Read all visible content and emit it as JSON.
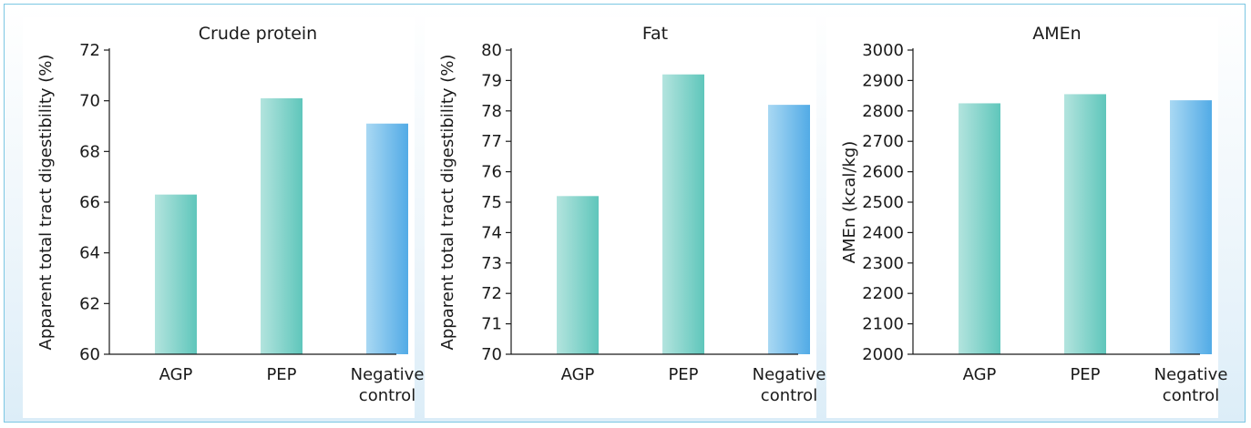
{
  "chart_data": [
    {
      "type": "bar",
      "title": "Crude protein",
      "ylabel": "Apparent total tract digestibility (%)",
      "categories": [
        [
          "AGP"
        ],
        [
          "PEP"
        ],
        [
          "Negative",
          "control"
        ]
      ],
      "values": [
        66.3,
        70.1,
        69.1
      ],
      "ylim": [
        60,
        72
      ],
      "yticks": [
        60,
        62,
        64,
        66,
        68,
        70,
        72
      ],
      "grid": false
    },
    {
      "type": "bar",
      "title": "Fat",
      "ylabel": "Apparent total tract digestibility (%)",
      "categories": [
        [
          "AGP"
        ],
        [
          "PEP"
        ],
        [
          "Negative",
          "control"
        ]
      ],
      "values": [
        75.2,
        79.2,
        78.2
      ],
      "ylim": [
        70,
        80
      ],
      "yticks": [
        70,
        71,
        72,
        73,
        74,
        75,
        76,
        77,
        78,
        79,
        80
      ],
      "grid": false
    },
    {
      "type": "bar",
      "title": "AMEn",
      "ylabel": "AMEn (kcal/kg)",
      "categories": [
        [
          "AGP"
        ],
        [
          "PEP"
        ],
        [
          "Negative",
          "control"
        ]
      ],
      "values": [
        2825,
        2855,
        2835
      ],
      "ylim": [
        2000,
        3000
      ],
      "yticks": [
        2000,
        2100,
        2200,
        2300,
        2400,
        2500,
        2600,
        2700,
        2800,
        2900,
        3000
      ],
      "grid": false
    }
  ],
  "colors": {
    "frame_border": "#7cc7e3",
    "teal_light": "#b3e4de",
    "teal_dark": "#5fc6bb",
    "blue_light": "#a9d8f3",
    "blue_dark": "#52abe6",
    "axis": "#1a1a1a"
  }
}
